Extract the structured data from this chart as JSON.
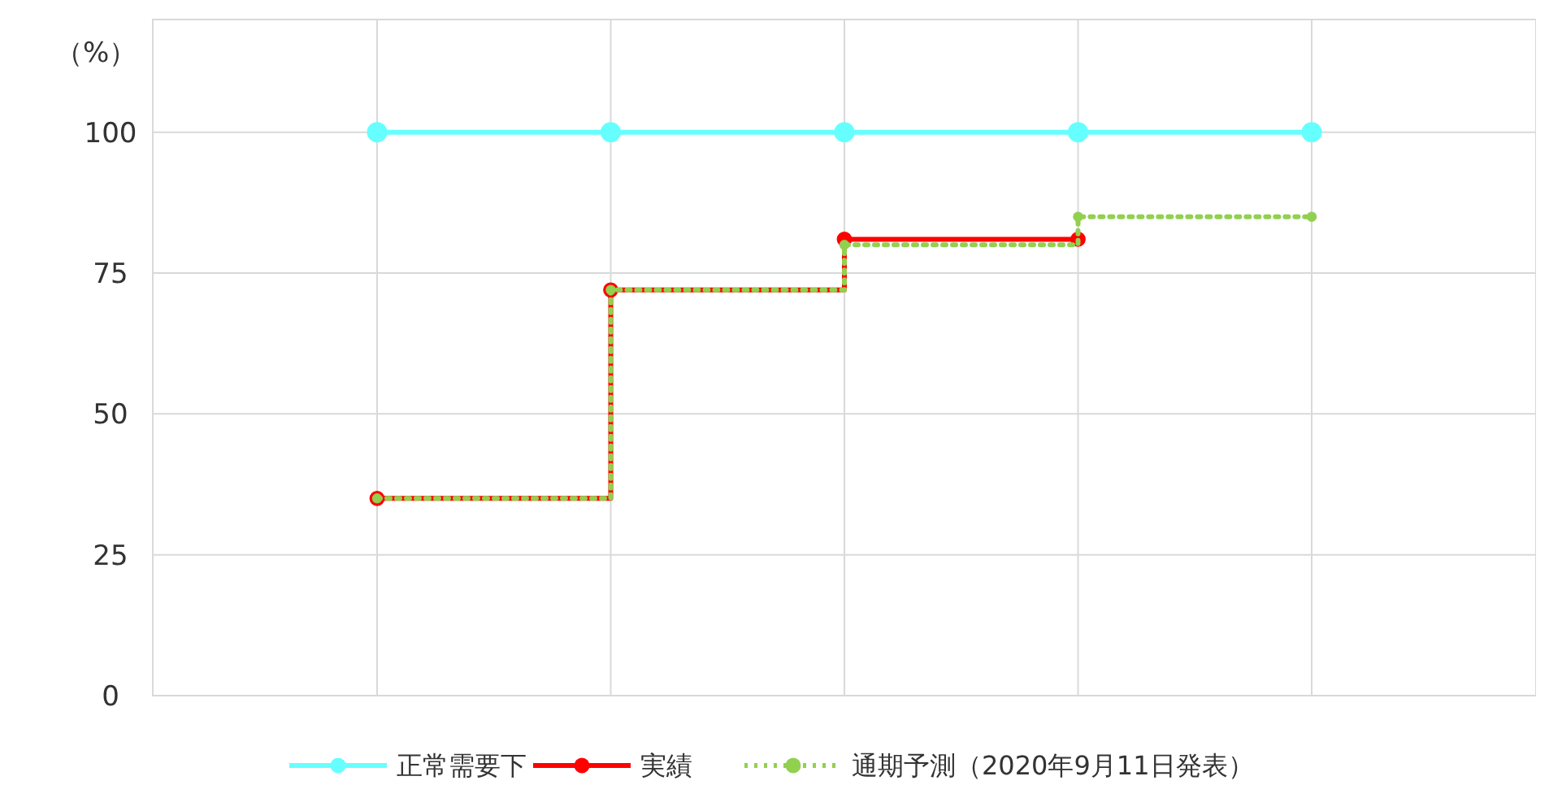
{
  "chart_data": {
    "type": "step",
    "ylabel": "（%）",
    "categories": [
      null,
      null,
      null,
      null,
      null
    ],
    "ylim": [
      0,
      120
    ],
    "yticks": [
      0,
      25,
      50,
      75,
      100
    ],
    "grid": true,
    "legend": "bottom",
    "marker": "circle",
    "series": [
      {
        "name": "正常需要下",
        "color": "#66ffff",
        "values": [
          100,
          100,
          100,
          100,
          100
        ],
        "line_style": "solid"
      },
      {
        "name": "実績",
        "color": "#ff0000",
        "values": [
          35,
          72,
          81,
          81,
          null
        ],
        "line_style": "solid"
      },
      {
        "name": "通期予測（2020年9月11日発表）",
        "color": "#92d050",
        "values": [
          35,
          72,
          80,
          85,
          85
        ],
        "line_style": "dotted"
      }
    ]
  }
}
